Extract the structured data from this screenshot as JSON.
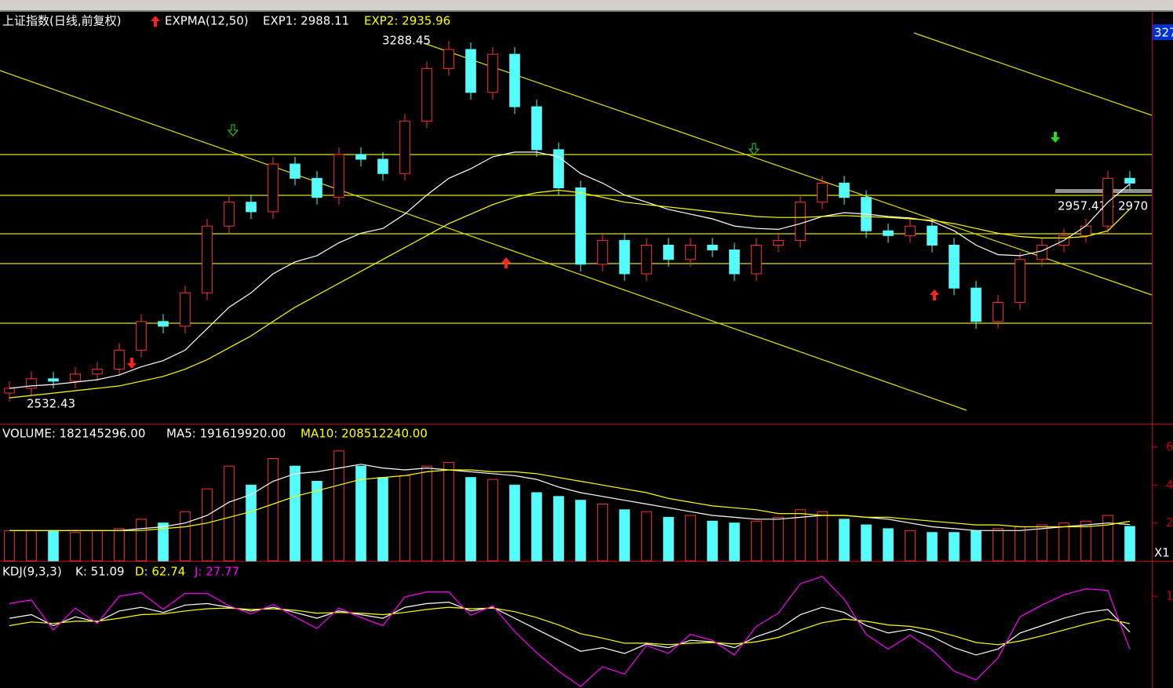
{
  "chart_data": [
    {
      "type": "candlestick",
      "title": "上证指数(日线,前复权)",
      "indicator": "EXPMA(12,50)",
      "up_color": "#ff3232",
      "down_color": "#54fcfc",
      "ylim": [
        2486,
        3349
      ],
      "open": [
        2550,
        2560,
        2580,
        2575,
        2590,
        2600,
        2640,
        2700,
        2690,
        2760,
        2900,
        2950,
        2930,
        3030,
        3000,
        2960,
        3050,
        3040,
        3010,
        3120,
        3230,
        3270,
        3180,
        3260,
        3150,
        3060,
        2980,
        2820,
        2870,
        2800,
        2860,
        2830,
        2860,
        2850,
        2800,
        2860,
        2870,
        2950,
        2990,
        2960,
        2890,
        2880,
        2900,
        2860,
        2770,
        2700,
        2740,
        2830,
        2860,
        2880,
        2900,
        3000
      ],
      "high": [
        2575,
        2595,
        2595,
        2605,
        2615,
        2655,
        2715,
        2715,
        2775,
        2915,
        2965,
        2965,
        3045,
        3045,
        3015,
        3065,
        3065,
        3055,
        3135,
        3245,
        3288.45,
        3285,
        3275,
        3275,
        3165,
        3075,
        2995,
        2885,
        2885,
        2875,
        2875,
        2875,
        2875,
        2865,
        2875,
        2885,
        2965,
        3005,
        3005,
        2975,
        2905,
        2915,
        2915,
        2875,
        2785,
        2755,
        2845,
        2875,
        2895,
        2915,
        3015,
        3015
      ],
      "low": [
        2532.43,
        2545,
        2560,
        2560,
        2575,
        2585,
        2625,
        2675,
        2675,
        2745,
        2885,
        2915,
        2915,
        2985,
        2945,
        2945,
        3025,
        2995,
        2995,
        3105,
        3215,
        3165,
        3165,
        3135,
        3045,
        2965,
        2805,
        2805,
        2785,
        2785,
        2815,
        2815,
        2835,
        2785,
        2785,
        2845,
        2855,
        2935,
        2945,
        2875,
        2865,
        2865,
        2845,
        2755,
        2685,
        2685,
        2725,
        2815,
        2845,
        2865,
        2885,
        2975
      ],
      "close": [
        2560,
        2580,
        2575,
        2590,
        2600,
        2640,
        2700,
        2690,
        2760,
        2900,
        2950,
        2930,
        3030,
        3000,
        2960,
        3050,
        3040,
        3010,
        3120,
        3230,
        3270,
        3180,
        3260,
        3150,
        3060,
        2980,
        2820,
        2870,
        2800,
        2860,
        2830,
        2860,
        2850,
        2800,
        2860,
        2870,
        2950,
        2990,
        2960,
        2890,
        2880,
        2900,
        2860,
        2770,
        2700,
        2740,
        2830,
        2860,
        2880,
        2900,
        3000,
        2990
      ],
      "series": [
        {
          "name": "EXP1: 2988.11",
          "color": "#ffffff",
          "values": [
            2560,
            2565,
            2568,
            2573,
            2578,
            2588,
            2605,
            2618,
            2640,
            2685,
            2730,
            2760,
            2800,
            2825,
            2838,
            2865,
            2885,
            2895,
            2925,
            2965,
            3000,
            3020,
            3045,
            3055,
            3055,
            3045,
            3010,
            2990,
            2965,
            2950,
            2935,
            2925,
            2915,
            2900,
            2895,
            2893,
            2905,
            2920,
            2928,
            2925,
            2920,
            2917,
            2910,
            2890,
            2860,
            2840,
            2838,
            2848,
            2870,
            2900,
            2950,
            2988.11
          ]
        },
        {
          "name": "EXP2: 2935.96",
          "color": "#ffff00",
          "values": [
            2540,
            2545,
            2550,
            2555,
            2560,
            2565,
            2575,
            2585,
            2600,
            2620,
            2645,
            2670,
            2700,
            2730,
            2755,
            2780,
            2805,
            2830,
            2855,
            2880,
            2905,
            2925,
            2945,
            2960,
            2970,
            2975,
            2970,
            2960,
            2950,
            2945,
            2940,
            2935,
            2930,
            2925,
            2920,
            2918,
            2918,
            2920,
            2922,
            2920,
            2918,
            2915,
            2912,
            2905,
            2895,
            2885,
            2878,
            2875,
            2875,
            2878,
            2890,
            2935.96
          ]
        }
      ],
      "annotations": {
        "high": "3288.45",
        "low": "2532.43",
        "range": "2957.41 - 2970",
        "price_tag": "327"
      }
    },
    {
      "type": "bar",
      "ylim": [
        0,
        7.2
      ],
      "yticks": [
        2,
        4,
        6
      ],
      "scale_tag": "X1",
      "series": [
        {
          "name": "VOLUME: 182145296.00",
          "values": [
            1.6,
            1.6,
            1.6,
            1.5,
            1.6,
            1.7,
            2.2,
            2.0,
            2.6,
            3.8,
            5.0,
            4.0,
            5.4,
            5.0,
            4.2,
            5.8,
            5.0,
            4.4,
            4.5,
            5.0,
            5.2,
            4.4,
            4.3,
            4.0,
            3.6,
            3.4,
            3.2,
            3.0,
            2.7,
            2.6,
            2.3,
            2.4,
            2.1,
            2.0,
            2.1,
            2.3,
            2.7,
            2.6,
            2.2,
            1.9,
            1.7,
            1.6,
            1.5,
            1.5,
            1.6,
            1.7,
            1.8,
            1.9,
            2.0,
            2.1,
            2.4,
            1.82
          ]
        },
        {
          "name": "MA5: 191619920.00",
          "color": "#ffffff",
          "values": [
            1.6,
            1.6,
            1.6,
            1.6,
            1.6,
            1.6,
            1.7,
            1.8,
            2.0,
            2.4,
            3.1,
            3.5,
            4.2,
            4.6,
            4.7,
            4.9,
            5.1,
            4.9,
            4.8,
            4.9,
            4.8,
            4.7,
            4.6,
            4.5,
            4.3,
            3.9,
            3.6,
            3.4,
            3.2,
            3.0,
            2.8,
            2.6,
            2.4,
            2.3,
            2.2,
            2.2,
            2.3,
            2.4,
            2.4,
            2.3,
            2.2,
            2.0,
            1.8,
            1.7,
            1.6,
            1.6,
            1.6,
            1.7,
            1.8,
            1.9,
            2.0,
            1.92
          ]
        },
        {
          "name": "MA10: 208512240.00",
          "color": "#ffff00",
          "values": [
            1.6,
            1.6,
            1.6,
            1.6,
            1.6,
            1.6,
            1.6,
            1.7,
            1.8,
            2.0,
            2.3,
            2.6,
            3.0,
            3.4,
            3.7,
            4.0,
            4.3,
            4.4,
            4.5,
            4.7,
            4.8,
            4.8,
            4.7,
            4.7,
            4.6,
            4.4,
            4.2,
            4.0,
            3.8,
            3.6,
            3.3,
            3.1,
            2.9,
            2.8,
            2.7,
            2.5,
            2.5,
            2.4,
            2.4,
            2.3,
            2.3,
            2.2,
            2.1,
            2.0,
            1.9,
            1.9,
            1.8,
            1.8,
            1.8,
            1.8,
            1.9,
            2.09
          ]
        }
      ]
    },
    {
      "type": "line",
      "title": "KDJ(9,3,3)",
      "ylim": [
        -25,
        145
      ],
      "yticks": [
        {
          "value": 100,
          "label": "1"
        }
      ],
      "series": [
        {
          "name": "K: 51.09",
          "color": "#ffffff",
          "values": [
            70,
            75,
            60,
            72,
            65,
            80,
            85,
            78,
            88,
            90,
            85,
            80,
            85,
            78,
            70,
            80,
            75,
            70,
            85,
            90,
            92,
            80,
            85,
            70,
            55,
            40,
            25,
            30,
            22,
            35,
            30,
            40,
            38,
            30,
            45,
            55,
            75,
            85,
            78,
            60,
            50,
            55,
            45,
            30,
            20,
            28,
            50,
            60,
            70,
            78,
            82,
            51.09
          ]
        },
        {
          "name": "D: 62.74",
          "color": "#ffff00",
          "values": [
            60,
            65,
            63,
            66,
            66,
            70,
            75,
            76,
            80,
            83,
            84,
            82,
            83,
            81,
            77,
            78,
            77,
            75,
            78,
            82,
            85,
            83,
            84,
            79,
            71,
            61,
            49,
            43,
            36,
            36,
            34,
            36,
            37,
            35,
            38,
            44,
            54,
            64,
            69,
            66,
            61,
            59,
            54,
            46,
            37,
            34,
            39,
            46,
            54,
            62,
            69,
            62.74
          ]
        },
        {
          "name": "J: 27.77",
          "color": "#ff00ff",
          "values": [
            90,
            95,
            54,
            84,
            63,
            100,
            105,
            82,
            104,
            104,
            87,
            76,
            89,
            72,
            56,
            84,
            71,
            60,
            99,
            106,
            106,
            74,
            87,
            52,
            23,
            -2,
            -23,
            4,
            -6,
            33,
            22,
            48,
            40,
            20,
            59,
            77,
            117,
            127,
            96,
            48,
            28,
            47,
            27,
            -2,
            -14,
            16,
            72,
            88,
            102,
            110,
            108,
            27.77
          ]
        }
      ]
    }
  ]
}
